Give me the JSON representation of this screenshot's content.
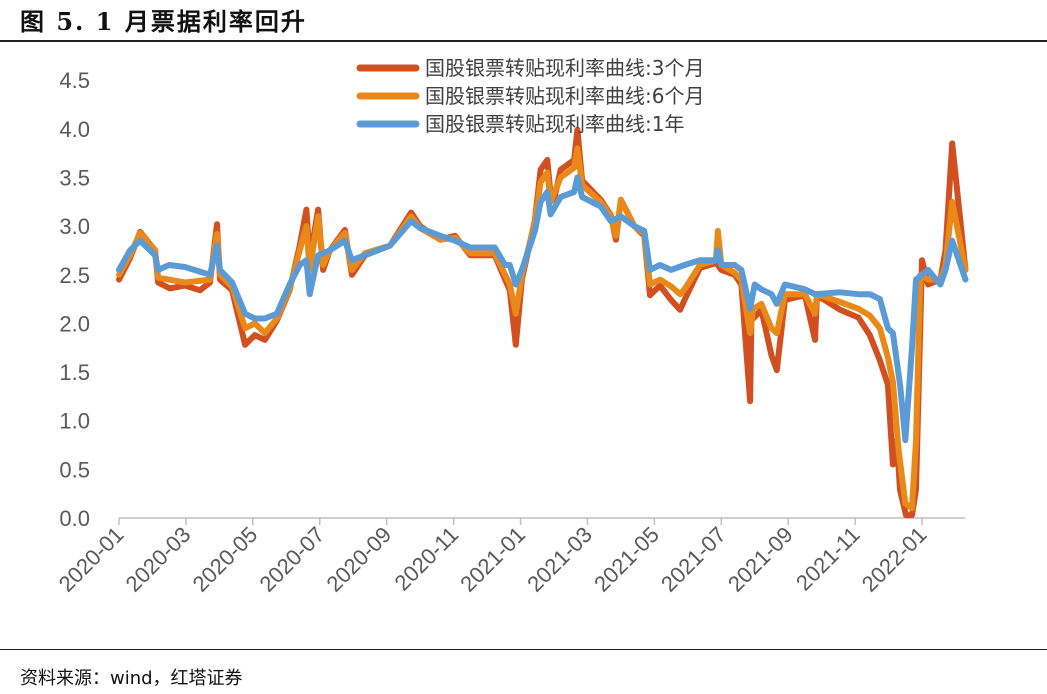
{
  "title": "图 5. 1 月票据利率回升",
  "source": "资料来源：wind，红塔证券",
  "chart_data": {
    "type": "line",
    "title": "图 5. 1 月票据利率回升",
    "xlabel": "",
    "ylabel": "",
    "x_unit": "months since 2020-01",
    "ylim": [
      0,
      4.5
    ],
    "xlim": [
      0,
      25.3
    ],
    "y_ticks": [
      "0.0",
      "0.5",
      "1.0",
      "1.5",
      "2.0",
      "2.5",
      "3.0",
      "3.5",
      "4.0",
      "4.5"
    ],
    "x_ticks": [
      "2020-01",
      "2020-03",
      "2020-05",
      "2020-07",
      "2020-09",
      "2020-11",
      "2021-01",
      "2021-03",
      "2021-05",
      "2021-07",
      "2021-09",
      "2021-11",
      "2022-01"
    ],
    "grid": false,
    "legend_position": "top-center",
    "series": [
      {
        "name": "国股银票转贴现利率曲线:3个月",
        "color": "#D2501F",
        "x": [
          0,
          0.33,
          0.63,
          1.08,
          1.17,
          1.52,
          1.97,
          2.42,
          2.72,
          2.93,
          3.02,
          3.38,
          3.77,
          4.06,
          4.36,
          4.72,
          5.1,
          5.4,
          5.6,
          5.7,
          5.95,
          6.1,
          6.3,
          6.75,
          6.96,
          7.35,
          8.1,
          8.73,
          9.0,
          9.6,
          10.04,
          10.5,
          11.23,
          11.54,
          11.68,
          11.86,
          12.04,
          12.43,
          12.6,
          12.8,
          12.9,
          13.0,
          13.2,
          13.6,
          13.7,
          13.84,
          14.4,
          14.7,
          14.85,
          15.0,
          15.4,
          15.7,
          15.87,
          16.17,
          16.5,
          16.77,
          16.9,
          17.36,
          17.84,
          17.9,
          18.0,
          18.4,
          18.6,
          18.86,
          18.9,
          19.2,
          19.5,
          19.66,
          19.9,
          20.5,
          20.8,
          20.86,
          21.55,
          22.1,
          22.44,
          22.74,
          22.98,
          23.13,
          23.25,
          23.34,
          23.52,
          23.7,
          23.82,
          24.0,
          24.18,
          24.55,
          24.7,
          24.9,
          25.3
        ],
        "y": [
          2.45,
          2.67,
          2.94,
          2.75,
          2.42,
          2.36,
          2.39,
          2.34,
          2.42,
          3.02,
          2.45,
          2.34,
          1.78,
          1.88,
          1.83,
          2.03,
          2.34,
          2.8,
          3.17,
          2.65,
          3.17,
          2.55,
          2.75,
          2.96,
          2.5,
          2.7,
          2.8,
          3.14,
          3.0,
          2.86,
          2.9,
          2.7,
          2.7,
          2.45,
          2.34,
          1.78,
          2.45,
          3.06,
          3.58,
          3.68,
          3.32,
          3.27,
          3.58,
          3.68,
          3.99,
          3.47,
          3.27,
          3.11,
          2.86,
          3.27,
          3.0,
          2.9,
          2.29,
          2.39,
          2.24,
          2.14,
          2.24,
          2.57,
          2.62,
          2.6,
          2.55,
          2.5,
          2.4,
          1.2,
          2.03,
          2.14,
          1.67,
          1.52,
          2.24,
          2.29,
          1.83,
          2.29,
          2.14,
          2.06,
          1.88,
          1.62,
          1.37,
          0.55,
          0.8,
          0.29,
          0.03,
          0.03,
          0.29,
          2.65,
          2.4,
          2.45,
          2.75,
          3.85,
          2.55
        ]
      },
      {
        "name": "国股银票转贴现利率曲线:6个月",
        "color": "#E8891A",
        "x": [
          0,
          0.33,
          0.63,
          1.08,
          1.17,
          1.97,
          2.72,
          2.93,
          3.02,
          3.38,
          3.77,
          4.06,
          4.36,
          4.72,
          5.1,
          5.4,
          5.6,
          5.7,
          5.95,
          6.1,
          6.3,
          6.75,
          6.96,
          7.35,
          8.1,
          8.73,
          9.0,
          9.6,
          10.04,
          10.5,
          11.23,
          11.54,
          11.68,
          11.86,
          12.04,
          12.43,
          12.6,
          12.8,
          12.9,
          13.2,
          13.6,
          13.7,
          13.84,
          14.4,
          14.7,
          14.85,
          15.0,
          15.4,
          15.7,
          15.87,
          16.17,
          16.5,
          16.77,
          16.9,
          17.36,
          17.84,
          17.9,
          18.0,
          18.4,
          18.6,
          18.86,
          18.95,
          19.2,
          19.5,
          19.66,
          19.9,
          20.5,
          20.8,
          20.86,
          21.55,
          22.1,
          22.44,
          22.74,
          22.98,
          23.13,
          23.3,
          23.5,
          23.7,
          23.82,
          23.95,
          24.18,
          24.55,
          24.7,
          24.9,
          25.3
        ],
        "y": [
          2.5,
          2.7,
          2.93,
          2.75,
          2.47,
          2.42,
          2.45,
          2.92,
          2.5,
          2.38,
          1.95,
          2.0,
          1.9,
          2.05,
          2.35,
          2.75,
          3.0,
          2.55,
          3.1,
          2.6,
          2.75,
          2.93,
          2.55,
          2.72,
          2.8,
          3.1,
          2.98,
          2.86,
          2.88,
          2.72,
          2.72,
          2.5,
          2.4,
          2.1,
          2.5,
          3.04,
          3.45,
          3.55,
          3.25,
          3.5,
          3.6,
          3.8,
          3.42,
          3.25,
          3.1,
          2.9,
          3.27,
          3.0,
          2.92,
          2.4,
          2.45,
          2.38,
          2.3,
          2.35,
          2.6,
          2.65,
          2.95,
          2.6,
          2.52,
          2.45,
          1.9,
          2.15,
          2.2,
          1.95,
          1.9,
          2.3,
          2.3,
          2.1,
          2.3,
          2.22,
          2.15,
          2.08,
          1.95,
          1.65,
          1.4,
          0.7,
          0.15,
          0.1,
          0.8,
          2.5,
          2.45,
          2.45,
          2.6,
          3.25,
          2.55
        ]
      },
      {
        "name": "国股银票转贴现利率曲线:1年",
        "color": "#5B9BD5",
        "x": [
          0,
          0.33,
          0.63,
          1.08,
          1.17,
          1.5,
          1.97,
          2.72,
          2.93,
          3.02,
          3.38,
          3.77,
          4.06,
          4.36,
          4.72,
          5.1,
          5.4,
          5.6,
          5.7,
          5.95,
          6.3,
          6.75,
          6.96,
          7.35,
          8.1,
          8.73,
          9.0,
          9.6,
          10.04,
          10.5,
          11.23,
          11.54,
          11.68,
          11.86,
          12.04,
          12.43,
          12.6,
          12.8,
          12.9,
          13.2,
          13.6,
          13.7,
          13.84,
          14.4,
          14.7,
          15.0,
          15.4,
          15.7,
          15.87,
          16.17,
          16.5,
          16.9,
          17.36,
          17.84,
          17.9,
          18.0,
          18.4,
          18.6,
          18.86,
          19.0,
          19.2,
          19.5,
          19.66,
          19.9,
          20.5,
          20.8,
          21.55,
          22.1,
          22.44,
          22.74,
          22.98,
          23.13,
          23.35,
          23.5,
          23.7,
          23.82,
          24.0,
          24.18,
          24.55,
          24.7,
          24.9,
          25.3
        ],
        "y": [
          2.55,
          2.75,
          2.85,
          2.7,
          2.55,
          2.6,
          2.58,
          2.5,
          2.8,
          2.55,
          2.42,
          2.1,
          2.05,
          2.05,
          2.1,
          2.4,
          2.6,
          2.65,
          2.3,
          2.7,
          2.75,
          2.85,
          2.65,
          2.7,
          2.8,
          3.05,
          2.98,
          2.9,
          2.85,
          2.78,
          2.78,
          2.6,
          2.6,
          2.4,
          2.55,
          2.95,
          3.25,
          3.35,
          3.12,
          3.3,
          3.35,
          3.5,
          3.3,
          3.2,
          3.05,
          3.1,
          3.0,
          2.95,
          2.55,
          2.6,
          2.55,
          2.6,
          2.65,
          2.65,
          2.75,
          2.6,
          2.6,
          2.55,
          2.15,
          2.4,
          2.35,
          2.3,
          2.2,
          2.4,
          2.35,
          2.3,
          2.32,
          2.3,
          2.3,
          2.25,
          1.95,
          1.9,
          1.35,
          0.8,
          1.75,
          2.45,
          2.5,
          2.55,
          2.4,
          2.55,
          2.85,
          2.45
        ]
      }
    ]
  }
}
